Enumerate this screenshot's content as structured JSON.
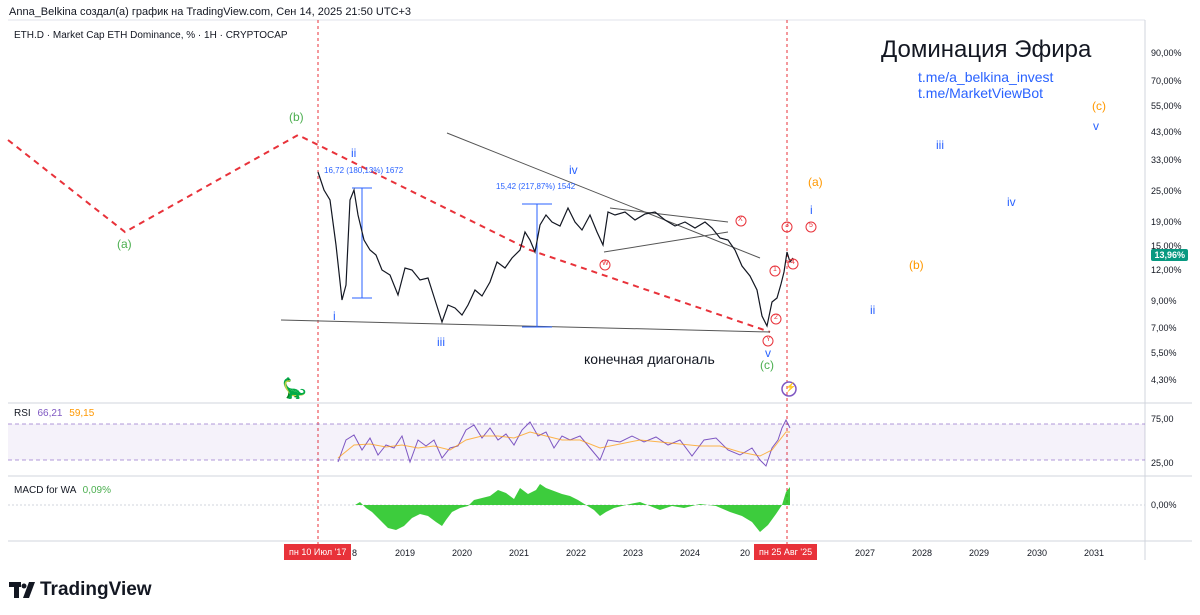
{
  "header": {
    "created_by": "Anna_Belkina создал(а) график на TradingView.com, Сен 14, 2025 21:50 UTC+3"
  },
  "symbol": {
    "description": "ETH.D · Market Cap ETH Dominance, % · 1H · CRYPTOCAP"
  },
  "title": "Доминация Эфира",
  "links": [
    "t.me/a_belkina_invest",
    "t.me/MarketViewBot"
  ],
  "price_axis": {
    "ticks": [
      "90,00%",
      "70,00%",
      "55,00%",
      "43,00%",
      "33,00%",
      "25,00%",
      "19,00%",
      "15,00%",
      "12,00%",
      "9,00%",
      "7,00%",
      "5,50%",
      "4,30%"
    ],
    "current": "13,96%"
  },
  "rsi": {
    "label": "RSI",
    "value1": "66,21",
    "value2": "59,15",
    "ticks": [
      "75,00",
      "25,00"
    ]
  },
  "macd": {
    "label": "MACD for WA",
    "value": "0,09%",
    "ticks": [
      "0,00%"
    ]
  },
  "time_axis": {
    "ticks": [
      "2019",
      "2020",
      "2021",
      "2022",
      "2023",
      "2024",
      "2027",
      "2028",
      "2029",
      "2030",
      "2031"
    ],
    "partial_left": "8",
    "partial_right": "20",
    "start_badge": "пн 10 Июл '17",
    "end_badge": "пн 25 Авг '25"
  },
  "annotations": {
    "measure1": "16,72 (180,13%) 1672",
    "measure2": "15,42 (217,87%) 1542",
    "diagonal": "конечная диагональ"
  },
  "waves_green": [
    "(b)",
    "(a)",
    "(c)"
  ],
  "waves_blue": [
    "ii",
    "i",
    "iii",
    "iv",
    "v",
    "i",
    "ii",
    "iii",
    "iv",
    "v"
  ],
  "waves_orange": [
    "(a)",
    "(b)",
    "(c)"
  ],
  "waves_red": [
    "W",
    "X",
    "Y",
    "1",
    "2",
    "3",
    "4",
    "5"
  ],
  "logo": "TradingView",
  "colors": {
    "green": "#4caf50",
    "blue": "#2962ff",
    "orange": "#ff9800",
    "red": "#e8323a",
    "purple": "#7e57c2"
  }
}
